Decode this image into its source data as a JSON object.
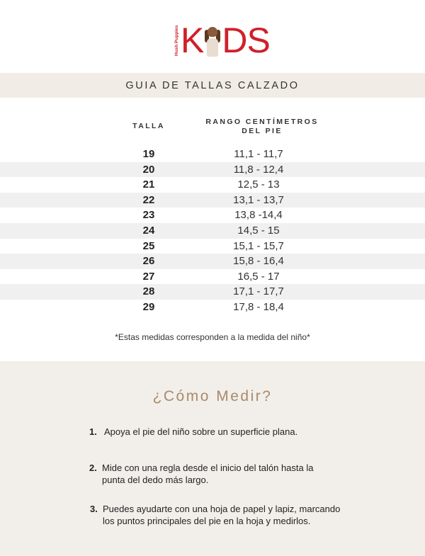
{
  "logo": {
    "brand_small": "Hush Puppies",
    "brand_big_left": "K",
    "brand_big_right": "DS"
  },
  "header": {
    "title": "GUIA DE TALLAS CALZADO"
  },
  "table": {
    "columns": [
      "TALLA",
      "RANGO CENTÍMETROS",
      "DEL PIE"
    ],
    "rows": [
      {
        "talla": "19",
        "rango": "11,1 - 11,7"
      },
      {
        "talla": "20",
        "rango": "11,8 - 12,4"
      },
      {
        "talla": "21",
        "rango": "12,5 - 13"
      },
      {
        "talla": "22",
        "rango": "13,1 - 13,7"
      },
      {
        "talla": "23",
        "rango": "13,8 -14,4"
      },
      {
        "talla": "24",
        "rango": "14,5 - 15"
      },
      {
        "talla": "25",
        "rango": "15,1 - 15,7"
      },
      {
        "talla": "26",
        "rango": "15,8 - 16,4"
      },
      {
        "talla": "27",
        "rango": "16,5 - 17"
      },
      {
        "talla": "28",
        "rango": "17,1 -  17,7"
      },
      {
        "talla": "29",
        "rango": "17,8 - 18,4"
      }
    ],
    "note": "*Estas medidas corresponden a la medida del niño*"
  },
  "how": {
    "title": "¿Cómo Medir?",
    "steps": [
      {
        "n": "1.",
        "text": "Apoya el pie del niño sobre un superficie plana."
      },
      {
        "n": "2.",
        "text": "Mide con una regla desde el inicio del talón hasta la punta del dedo más largo."
      },
      {
        "n": "3.",
        "text": "Puedes ayudarte con una hoja de papel y lapiz, marcando los puntos principales del pie en la hoja y medirlos."
      }
    ]
  },
  "colors": {
    "brand_red": "#d0202a",
    "accent_tan": "#a88a6b",
    "band_beige": "#f1ede6"
  }
}
